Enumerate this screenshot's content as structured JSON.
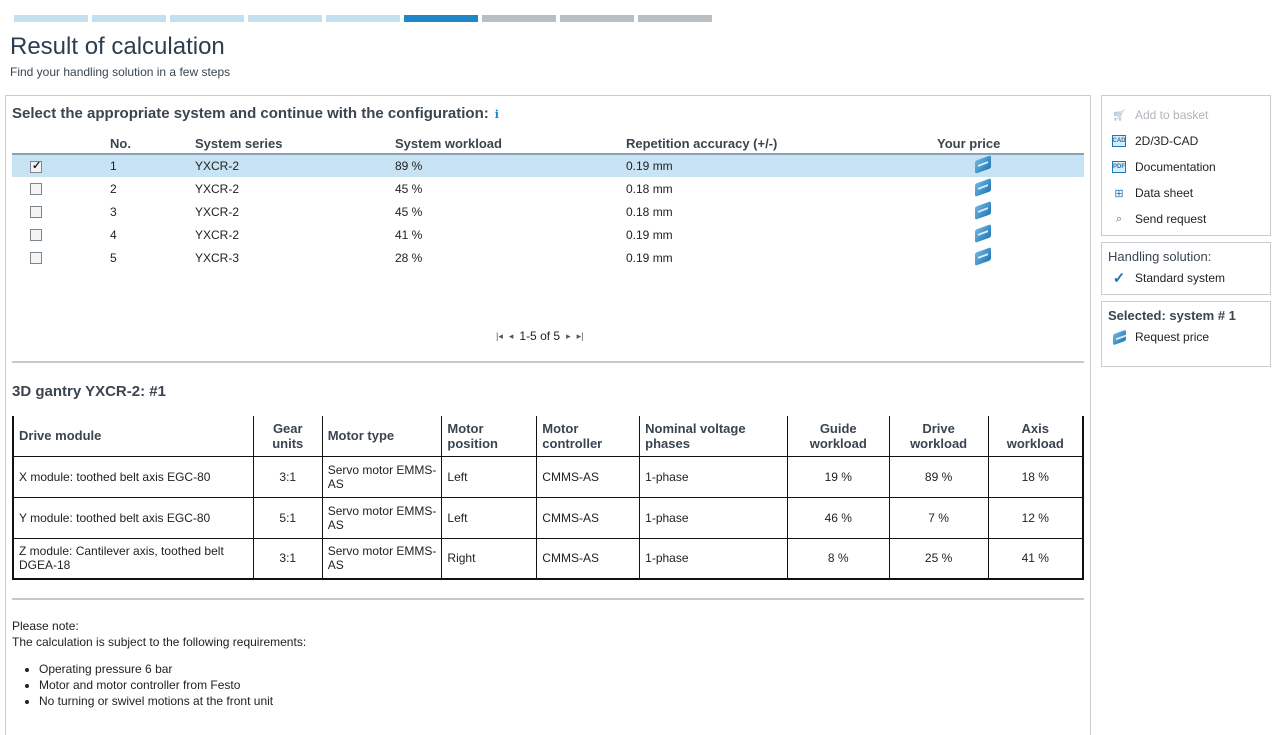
{
  "progress": {
    "steps": [
      {
        "state": "done"
      },
      {
        "state": "done"
      },
      {
        "state": "done"
      },
      {
        "state": "done"
      },
      {
        "state": "done"
      },
      {
        "state": "active"
      },
      {
        "state": "todo"
      },
      {
        "state": "todo"
      },
      {
        "state": "todo"
      }
    ],
    "colors": {
      "done": "#c5dff0",
      "active": "#1f86c8",
      "todo": "#b9bec3"
    }
  },
  "header": {
    "title": "Result of calculation",
    "subtitle": "Find your handling solution in a few steps"
  },
  "results": {
    "heading": "Select the appropriate system and continue with the configuration:",
    "info_icon": "i",
    "columns": {
      "no": "No.",
      "series": "System series",
      "workload": "System workload",
      "accuracy": "Repetition accuracy (+/-)",
      "price": "Your price"
    },
    "rows": [
      {
        "checked": true,
        "no": "1",
        "series": "YXCR-2",
        "workload": "89 %",
        "accuracy": "0.19 mm"
      },
      {
        "checked": false,
        "no": "2",
        "series": "YXCR-2",
        "workload": "45 %",
        "accuracy": "0.18 mm"
      },
      {
        "checked": false,
        "no": "3",
        "series": "YXCR-2",
        "workload": "45 %",
        "accuracy": "0.18 mm"
      },
      {
        "checked": false,
        "no": "4",
        "series": "YXCR-2",
        "workload": "41 %",
        "accuracy": "0.19 mm"
      },
      {
        "checked": false,
        "no": "5",
        "series": "YXCR-3",
        "workload": "28 %",
        "accuracy": "0.19 mm"
      }
    ],
    "pager": {
      "first": "|◂",
      "prev": "◂",
      "label": "1-5 of 5",
      "next": "▸",
      "last": "▸|"
    }
  },
  "detail": {
    "title": "3D gantry YXCR-2: #1",
    "columns": {
      "drive_module": "Drive module",
      "gear_units": "Gear units",
      "motor_type": "Motor type",
      "motor_position": "Motor position",
      "motor_controller": "Motor controller",
      "voltage": "Nominal voltage phases",
      "guide": "Guide workload",
      "drive": "Drive workload",
      "axis": "Axis workload"
    },
    "rows": [
      {
        "drive_module": "X module: toothed belt axis EGC-80",
        "gear_units": "3:1",
        "motor_type": "Servo motor EMMS-AS",
        "motor_position": "Left",
        "motor_controller": "CMMS-AS",
        "voltage": "1-phase",
        "guide": "19 %",
        "drive": "89 %",
        "axis": "18 %"
      },
      {
        "drive_module": "Y module: toothed belt axis EGC-80",
        "gear_units": "5:1",
        "motor_type": "Servo motor EMMS-AS",
        "motor_position": "Left",
        "motor_controller": "CMMS-AS",
        "voltage": "1-phase",
        "guide": "46 %",
        "drive": "7 %",
        "axis": "12 %"
      },
      {
        "drive_module": "Z module: Cantilever axis, toothed belt DGEA-18",
        "gear_units": "3:1",
        "motor_type": "Servo motor EMMS-AS",
        "motor_position": "Right",
        "motor_controller": "CMMS-AS",
        "voltage": "1-phase",
        "guide": "8 %",
        "drive": "25 %",
        "axis": "41 %"
      }
    ]
  },
  "note": {
    "title": "Please note:",
    "intro": "The calculation is subject to the following requirements:",
    "items": [
      "Operating pressure 6 bar",
      "Motor and motor controller from Festo",
      "No turning or swivel motions at the front unit"
    ]
  },
  "sidebar": {
    "actions": [
      {
        "label": "Add to basket",
        "icon": "cart-icon",
        "disabled": true
      },
      {
        "label": "2D/3D-CAD",
        "icon": "cad-icon",
        "disabled": false
      },
      {
        "label": "Documentation",
        "icon": "pdf-icon",
        "disabled": false
      },
      {
        "label": "Data sheet",
        "icon": "grid-icon",
        "disabled": false
      },
      {
        "label": "Send request",
        "icon": "paperclip-icon",
        "disabled": false
      }
    ],
    "handling": {
      "title": "Handling solution:",
      "value": "Standard system",
      "icon": "checkmark-icon"
    },
    "selected": {
      "title": "Selected: system # 1",
      "action": "Request price",
      "icon": "price-icon"
    }
  }
}
